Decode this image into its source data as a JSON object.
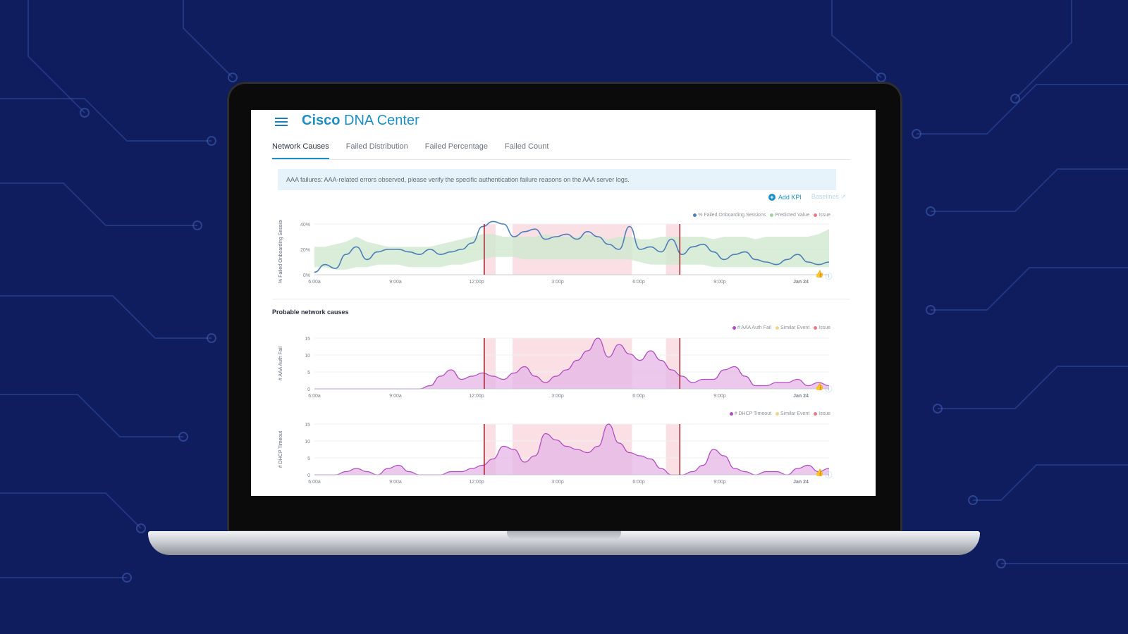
{
  "app": {
    "title_bold": "Cisco",
    "title_rest": "DNA Center"
  },
  "tabs": [
    {
      "label": "Network Causes",
      "active": true
    },
    {
      "label": "Failed Distribution",
      "active": false
    },
    {
      "label": "Failed Percentage",
      "active": false
    },
    {
      "label": "Failed Count",
      "active": false
    }
  ],
  "alert": {
    "text": "AAA failures: AAA-related errors observed, please verify the specific authentication failure reasons on the AAA server logs."
  },
  "kpi": {
    "add_label": "Add KPI",
    "baselines_label": "Baselines"
  },
  "section": {
    "probable_causes": "Probable network causes"
  },
  "colors": {
    "accent": "#1e8fc4",
    "line_blue": "#4f7fb8",
    "predicted_green": "#cfe9cf",
    "issue_pink": "#f6c7cf",
    "issue_line": "#a3202a",
    "aaa_purple": "#b04cbf",
    "area_purple": "#e6b5e6"
  },
  "chart_data": [
    {
      "type": "line",
      "ylabel": "% Failed Onboarding Sessions",
      "yticks": [
        "40%",
        "20%",
        "0%"
      ],
      "ylim": [
        0,
        40
      ],
      "xticks": [
        "6:00a",
        "9:00a",
        "12:00p",
        "3:00p",
        "6:00p",
        "9:00p",
        "Jan 24"
      ],
      "legend": [
        "% Failed Onboarding Sessions",
        "Predicted Value",
        "Issue"
      ],
      "series": [
        {
          "name": "% Failed Onboarding Sessions",
          "values": [
            2,
            8,
            5,
            16,
            22,
            12,
            18,
            20,
            20,
            18,
            16,
            20,
            16,
            18,
            20,
            25,
            38,
            42,
            40,
            30,
            34,
            36,
            28,
            30,
            32,
            28,
            34,
            30,
            24,
            20,
            38,
            20,
            22,
            18,
            28,
            16,
            22,
            24,
            18,
            12,
            16,
            18,
            12,
            10,
            8,
            12,
            16,
            10,
            8,
            10
          ]
        },
        {
          "name": "Predicted Value",
          "upper": [
            22,
            22,
            24,
            26,
            30,
            26,
            24,
            22,
            22,
            22,
            22,
            22,
            24,
            26,
            28,
            30,
            32,
            32,
            30,
            30,
            30,
            30,
            32,
            30,
            30,
            30,
            32,
            30,
            28,
            30,
            30,
            28,
            28,
            30,
            30,
            30,
            30,
            30,
            28,
            30,
            30,
            30,
            28,
            30,
            30,
            30,
            30,
            30,
            32,
            36
          ],
          "lower": [
            6,
            6,
            4,
            4,
            6,
            6,
            8,
            8,
            8,
            6,
            6,
            6,
            6,
            8,
            8,
            10,
            12,
            14,
            14,
            14,
            12,
            12,
            12,
            12,
            12,
            12,
            12,
            12,
            12,
            12,
            12,
            10,
            8,
            8,
            8,
            8,
            8,
            8,
            6,
            6,
            6,
            6,
            6,
            6,
            6,
            6,
            6,
            6,
            6,
            6
          ]
        }
      ],
      "issue_ranges": [
        [
          0.328,
          0.352
        ],
        [
          0.385,
          0.617
        ],
        [
          0.683,
          0.71
        ]
      ],
      "issue_lines": [
        0.33,
        0.71
      ]
    },
    {
      "type": "area",
      "ylabel": "# AAA Auth Fail",
      "yticks": [
        "15",
        "10",
        "5",
        "0"
      ],
      "ylim": [
        0,
        16
      ],
      "xticks": [
        "6:00a",
        "9:00a",
        "12:00p",
        "3:00p",
        "6:00p",
        "9:00p",
        "Jan 24"
      ],
      "legend": [
        "# AAA Auth Fail",
        "Similar Event",
        "Issue"
      ],
      "series": [
        {
          "name": "# AAA Auth Fail",
          "values": [
            0,
            0,
            0,
            0,
            0,
            0,
            0,
            0,
            0,
            0,
            0,
            1,
            4,
            6,
            3,
            4,
            5,
            4,
            3,
            5,
            7,
            4,
            2,
            4,
            6,
            9,
            12,
            16,
            10,
            14,
            11,
            9,
            12,
            9,
            6,
            4,
            2,
            3,
            3,
            6,
            7,
            4,
            1,
            1,
            2,
            2,
            3,
            1,
            2,
            1
          ]
        }
      ],
      "issue_ranges": [
        [
          0.328,
          0.352
        ],
        [
          0.385,
          0.617
        ],
        [
          0.683,
          0.71
        ]
      ],
      "issue_lines": [
        0.33,
        0.71
      ]
    },
    {
      "type": "area",
      "ylabel": "# DHCP Timeout",
      "yticks": [
        "15",
        "10",
        "5",
        "0"
      ],
      "ylim": [
        0,
        16
      ],
      "xticks": [
        "6:00a",
        "9:00a",
        "12:00p",
        "3:00p",
        "6:00p",
        "9:00p",
        "Jan 24"
      ],
      "legend": [
        "# DHCP Timeout",
        "Similar Event",
        "Issue"
      ],
      "series": [
        {
          "name": "# DHCP Timeout",
          "values": [
            0,
            0,
            0,
            1,
            2,
            1,
            0,
            2,
            3,
            1,
            0,
            0,
            0,
            1,
            1,
            2,
            3,
            5,
            9,
            8,
            4,
            6,
            13,
            11,
            9,
            8,
            7,
            9,
            16,
            10,
            7,
            6,
            5,
            2,
            0,
            0,
            1,
            3,
            8,
            6,
            2,
            1,
            0,
            1,
            1,
            0,
            2,
            3,
            1,
            2
          ]
        }
      ],
      "issue_ranges": [
        [
          0.328,
          0.352
        ],
        [
          0.385,
          0.617
        ],
        [
          0.683,
          0.71
        ]
      ],
      "issue_lines": [
        0.33,
        0.71
      ]
    }
  ]
}
